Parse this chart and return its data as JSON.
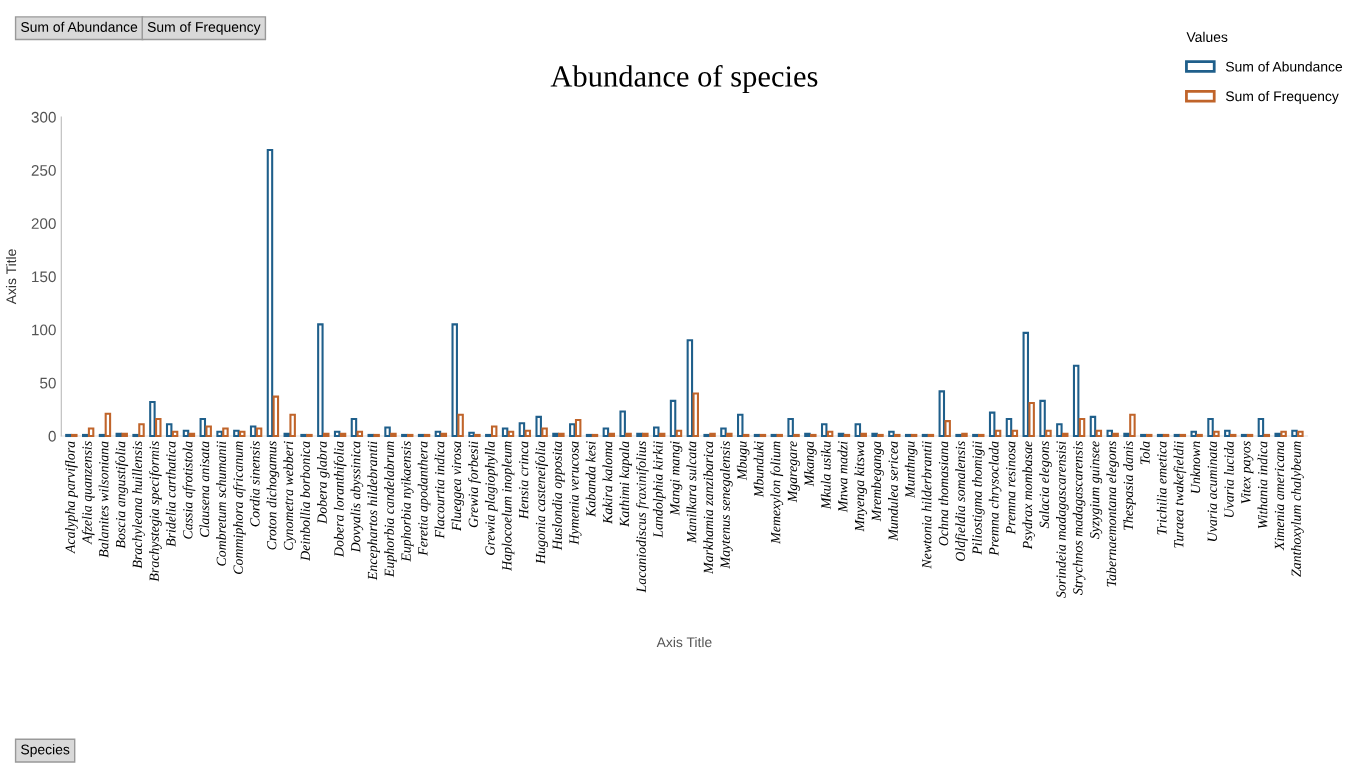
{
  "chart_data": {
    "type": "bar",
    "title": "Abundance of species",
    "xlabel": "Axis Title",
    "ylabel": "Axis Title",
    "legend_title": "Values",
    "annotations": [
      "Sum of Abundance",
      "Sum of Frequency",
      "Species"
    ],
    "categories": [
      "Acalypha parviflora",
      "Afzelia quanzensis",
      "Balanites wilsoniana",
      "Boscia angustifolia",
      "Brachyleana huillensis",
      "Brachystegia speciformis",
      "Bridelia carthatica",
      "Cassia afrotistola",
      "Clausena anisata",
      "Combretum schumanii",
      "Commiphora africanum",
      "Cordia sinensis",
      "Croton dichogamus",
      "Cynometra webberi",
      "Deinbollia borbonica",
      "Dobera glabra",
      "Dobera loranthifolia",
      "Dovyalis abyssinica",
      "Encephartos hildebrantii",
      "Euphorbia candelabrum",
      "Euphorbia nyikaensis",
      "Feretia apodanthera",
      "Flacourtia indica",
      "Flueggea virosa",
      "Grewia forbesii",
      "Grewia plagiophylla",
      "Haplocoelum inopleum",
      "Hensia crinca",
      "Hugonia casteneifolia",
      "Huslondia opposita",
      "Hymenia verucosa",
      "Kabanda kesi",
      "Kakira kaloma",
      "Kathimi kapala",
      "Lacaniodiscus fraxinifolius",
      "Landolphia kirkii",
      "Mangi mangi",
      "Manilkara sulcata",
      "Markhamia zanzibarica",
      "Maytenus senegalensis",
      "Mbugu",
      "Mbunduki",
      "Memexylon folium",
      "Mgaregare",
      "Mkanga",
      "Mkula usiku",
      "Mnwa madzi",
      "Mnyenga kitswa",
      "Mrembeganga",
      "Mundulea sericea",
      "Munthngu",
      "Newtonia hilderbrantii",
      "Ochna thomasiana",
      "Oldfieldia somalensis",
      "Piliostigma thomigii",
      "Premna chrysoclada",
      "Premna resinosa",
      "Psydrax mombasae",
      "Salacia elegons",
      "Sorindeia madagascarensisi",
      "Strychnos madagascarensis",
      "Syzygium guinsee",
      "Tabernaemontana elegons",
      "Thespasia danis",
      "Tola",
      "Trichilia emetica",
      "Turaea twakefieldii",
      "Unknown",
      "Uvaria acuminata",
      "Uvaria lucida",
      "Vitex payos",
      "Withania indica",
      "Ximenia americana",
      "Zanthoxylum chalybeum"
    ],
    "series": [
      {
        "name": "Sum of Abundance",
        "color": "#1f5f8b",
        "values": [
          1,
          1,
          1,
          2,
          1,
          32,
          11,
          5,
          16,
          4,
          5,
          9,
          269,
          2,
          1,
          105,
          4,
          16,
          1,
          8,
          1,
          1,
          4,
          105,
          3,
          1,
          7,
          12,
          18,
          2,
          11,
          1,
          7,
          23,
          2,
          8,
          33,
          90,
          1,
          7,
          20,
          1,
          1,
          16,
          2,
          11,
          2,
          11,
          2,
          4,
          1,
          1,
          42,
          1,
          1,
          22,
          16,
          97,
          33,
          11,
          66,
          18,
          5,
          2,
          1,
          1,
          1,
          4,
          16,
          5,
          1,
          16,
          2,
          5
        ]
      },
      {
        "name": "Sum of Frequency",
        "color": "#c0642a",
        "values": [
          1,
          7,
          21,
          2,
          11,
          16,
          4,
          2,
          9,
          7,
          4,
          7,
          37,
          20,
          1,
          2,
          2,
          4,
          1,
          2,
          1,
          1,
          2,
          20,
          1,
          9,
          4,
          5,
          7,
          2,
          15,
          1,
          2,
          2,
          2,
          2,
          5,
          40,
          2,
          2,
          1,
          1,
          1,
          1,
          1,
          4,
          1,
          2,
          1,
          1,
          1,
          1,
          14,
          2,
          1,
          5,
          5,
          31,
          5,
          2,
          16,
          5,
          2,
          20,
          1,
          1,
          1,
          1,
          4,
          1,
          1,
          1,
          4,
          4
        ]
      }
    ],
    "ylim": [
      0,
      300
    ],
    "yticks": [
      0,
      50,
      100,
      150,
      200,
      250,
      300
    ],
    "grid": false,
    "legend": "top right"
  }
}
